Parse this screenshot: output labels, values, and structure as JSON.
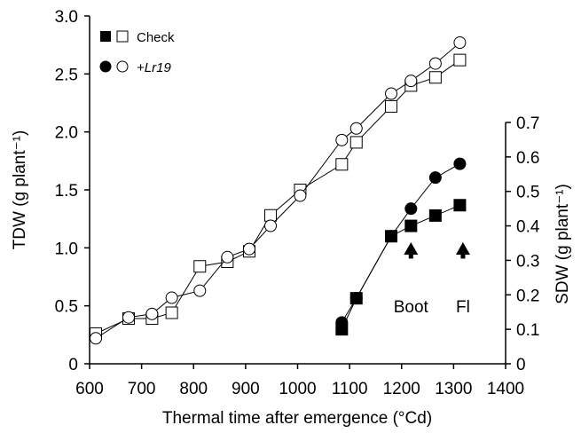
{
  "chart_data": {
    "type": "scatter",
    "xlabel": "Thermal time after emergence (°Cd)",
    "x_ticks": [
      600,
      700,
      800,
      900,
      1000,
      1100,
      1200,
      1300,
      1400
    ],
    "xlim": [
      600,
      1400
    ],
    "left_axis": {
      "label": "TDW (g plant⁻¹)",
      "ticks": [
        "0",
        "0.5",
        "1.0",
        "1.5",
        "2.0",
        "2.5",
        "3.0"
      ],
      "ylim": [
        0,
        3.0
      ]
    },
    "right_axis": {
      "label": "SDW (g plant⁻¹)",
      "ticks": [
        "0",
        "0.1",
        "0.2",
        "0.3",
        "0.4",
        "0.5",
        "0.6",
        "0.7"
      ],
      "ylim": [
        0,
        0.7
      ]
    },
    "legend": [
      {
        "label": "Check",
        "markers": [
          "filled-square",
          "open-square"
        ]
      },
      {
        "label": "+Lr19",
        "markers": [
          "filled-circle",
          "open-circle"
        ]
      }
    ],
    "series": [
      {
        "name": "Check",
        "axis": "left",
        "marker": "open-square",
        "x": [
          612,
          675,
          720,
          758,
          812,
          865,
          907,
          948,
          1005,
          1085,
          1113,
          1180,
          1218,
          1265,
          1312
        ],
        "y": [
          0.26,
          0.39,
          0.39,
          0.44,
          0.84,
          0.88,
          0.97,
          1.28,
          1.5,
          1.72,
          1.91,
          2.22,
          2.4,
          2.47,
          2.62
        ]
      },
      {
        "name": "+Lr19",
        "axis": "left",
        "marker": "open-circle",
        "x": [
          612,
          675,
          720,
          758,
          812,
          865,
          907,
          948,
          1005,
          1085,
          1113,
          1180,
          1218,
          1265,
          1312
        ],
        "y": [
          0.22,
          0.4,
          0.43,
          0.57,
          0.63,
          0.92,
          0.99,
          1.19,
          1.45,
          1.93,
          2.03,
          2.33,
          2.44,
          2.59,
          2.77
        ]
      },
      {
        "name": "Check",
        "axis": "right",
        "marker": "filled-square",
        "x": [
          1085,
          1113,
          1180,
          1218,
          1265,
          1312
        ],
        "y": [
          0.1,
          0.19,
          0.37,
          0.4,
          0.43,
          0.46
        ]
      },
      {
        "name": "+Lr19",
        "axis": "right",
        "marker": "filled-circle",
        "x": [
          1085,
          1113,
          1180,
          1218,
          1265,
          1312
        ],
        "y": [
          0.12,
          0.19,
          0.37,
          0.45,
          0.54,
          0.58
        ]
      }
    ],
    "annotations": [
      {
        "text": "Boot",
        "x": 1218,
        "arrow_y": 0.3
      },
      {
        "text": "Fl",
        "x": 1318,
        "arrow_y": 0.3
      }
    ],
    "grid": false
  }
}
